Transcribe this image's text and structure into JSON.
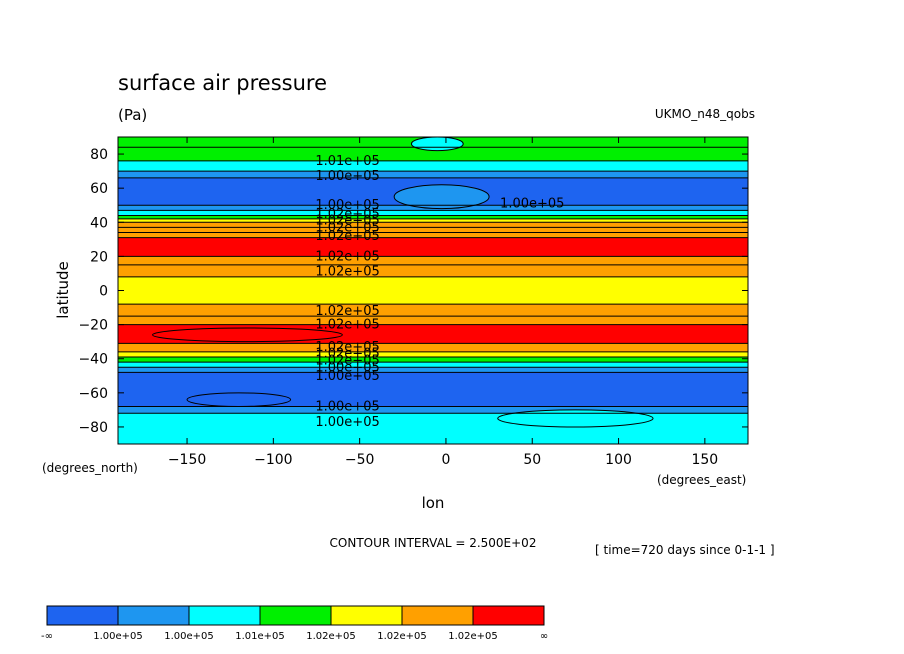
{
  "chart_data": {
    "type": "heatmap",
    "title": "surface air pressure",
    "units": "(Pa)",
    "model": "UKMO_n48_qobs",
    "xlabel": "lon",
    "ylabel": "latitude",
    "x_units": "(degrees_east)",
    "y_units": "(degrees_north)",
    "xlim": [
      -190,
      175
    ],
    "ylim": [
      -90,
      90
    ],
    "xticks": [
      -150,
      -100,
      -50,
      0,
      50,
      100,
      150
    ],
    "yticks": [
      -80,
      -60,
      -40,
      -20,
      0,
      20,
      40,
      60,
      80
    ],
    "contour_interval_text": "CONTOUR INTERVAL = 2.500E+02",
    "time_text": "[ time=720 days since 0-1-1 ]",
    "colorbar": {
      "colors": [
        "#1e64f0",
        "#1e96f0",
        "#00ffff",
        "#00f000",
        "#ffff00",
        "#ffa000",
        "#ff0000"
      ],
      "labels": [
        "-∞",
        "1.00e+05",
        "1.00e+05",
        "1.01e+05",
        "1.02e+05",
        "1.02e+05",
        "1.02e+05",
        "∞"
      ]
    },
    "bands": [
      {
        "lat": [
          84,
          90
        ],
        "level": 3
      },
      {
        "lat": [
          76,
          84
        ],
        "level": 3
      },
      {
        "lat": [
          70,
          76
        ],
        "level": 2
      },
      {
        "lat": [
          66,
          70
        ],
        "level": 1
      },
      {
        "lat": [
          50,
          66
        ],
        "level": 0
      },
      {
        "lat": [
          47,
          50
        ],
        "level": 1
      },
      {
        "lat": [
          44,
          47
        ],
        "level": 2
      },
      {
        "lat": [
          42,
          44
        ],
        "level": 3
      },
      {
        "lat": [
          40,
          42
        ],
        "level": 4
      },
      {
        "lat": [
          37,
          40
        ],
        "level": 5
      },
      {
        "lat": [
          34,
          37
        ],
        "level": 5
      },
      {
        "lat": [
          31,
          34
        ],
        "level": 5
      },
      {
        "lat": [
          20,
          31
        ],
        "level": 6
      },
      {
        "lat": [
          15,
          20
        ],
        "level": 5
      },
      {
        "lat": [
          8,
          15
        ],
        "level": 5
      },
      {
        "lat": [
          -8,
          8
        ],
        "level": 4
      },
      {
        "lat": [
          -15,
          -8
        ],
        "level": 5
      },
      {
        "lat": [
          -20,
          -15
        ],
        "level": 5
      },
      {
        "lat": [
          -31,
          -20
        ],
        "level": 6
      },
      {
        "lat": [
          -36,
          -31
        ],
        "level": 5
      },
      {
        "lat": [
          -39,
          -36
        ],
        "level": 4
      },
      {
        "lat": [
          -42,
          -39
        ],
        "level": 3
      },
      {
        "lat": [
          -45,
          -42
        ],
        "level": 2
      },
      {
        "lat": [
          -48,
          -45
        ],
        "level": 1
      },
      {
        "lat": [
          -68,
          -48
        ],
        "level": 0
      },
      {
        "lat": [
          -72,
          -68
        ],
        "level": 1
      },
      {
        "lat": [
          -90,
          -72
        ],
        "level": 2
      }
    ],
    "blobs": [
      {
        "lon": [
          -30,
          25
        ],
        "lat": [
          48,
          62
        ],
        "level": 1
      },
      {
        "lon": [
          -20,
          10
        ],
        "lat": [
          82,
          90
        ],
        "level": 2
      },
      {
        "lon": [
          -170,
          -60
        ],
        "lat": [
          -30,
          -22
        ],
        "level": 6
      },
      {
        "lon": [
          30,
          120
        ],
        "lat": [
          -80,
          -70
        ],
        "level": 2
      },
      {
        "lon": [
          -150,
          -90
        ],
        "lat": [
          -68,
          -60
        ],
        "level": 0
      }
    ],
    "contour_labels": [
      {
        "text": "1.01e+05",
        "lon": -57,
        "lat": 76
      },
      {
        "text": "1.00e+05",
        "lon": -57,
        "lat": 67
      },
      {
        "text": "1.00e+05",
        "lon": -57,
        "lat": 50
      },
      {
        "text": "1.00e+05",
        "lon": 50,
        "lat": 51
      },
      {
        "text": "1.02e+05",
        "lon": -57,
        "lat": 45
      },
      {
        "text": "1.02e+05",
        "lon": -57,
        "lat": 41
      },
      {
        "text": "1.02e+05",
        "lon": -57,
        "lat": 37
      },
      {
        "text": "1.02e+05",
        "lon": -57,
        "lat": 32
      },
      {
        "text": "1.02e+05",
        "lon": -57,
        "lat": 20
      },
      {
        "text": "1.02e+05",
        "lon": -57,
        "lat": 11
      },
      {
        "text": "1.02e+05",
        "lon": -57,
        "lat": -12
      },
      {
        "text": "1.02e+05",
        "lon": -57,
        "lat": -20
      },
      {
        "text": "1.02e+05",
        "lon": -57,
        "lat": -33
      },
      {
        "text": "1.02e+05",
        "lon": -57,
        "lat": -37
      },
      {
        "text": "1.02e+05",
        "lon": -57,
        "lat": -41
      },
      {
        "text": "1.00e+05",
        "lon": -57,
        "lat": -45
      },
      {
        "text": "1.00e+05",
        "lon": -57,
        "lat": -50
      },
      {
        "text": "1.00e+05",
        "lon": -57,
        "lat": -68
      },
      {
        "text": "1.00e+05",
        "lon": -57,
        "lat": -77
      }
    ]
  }
}
